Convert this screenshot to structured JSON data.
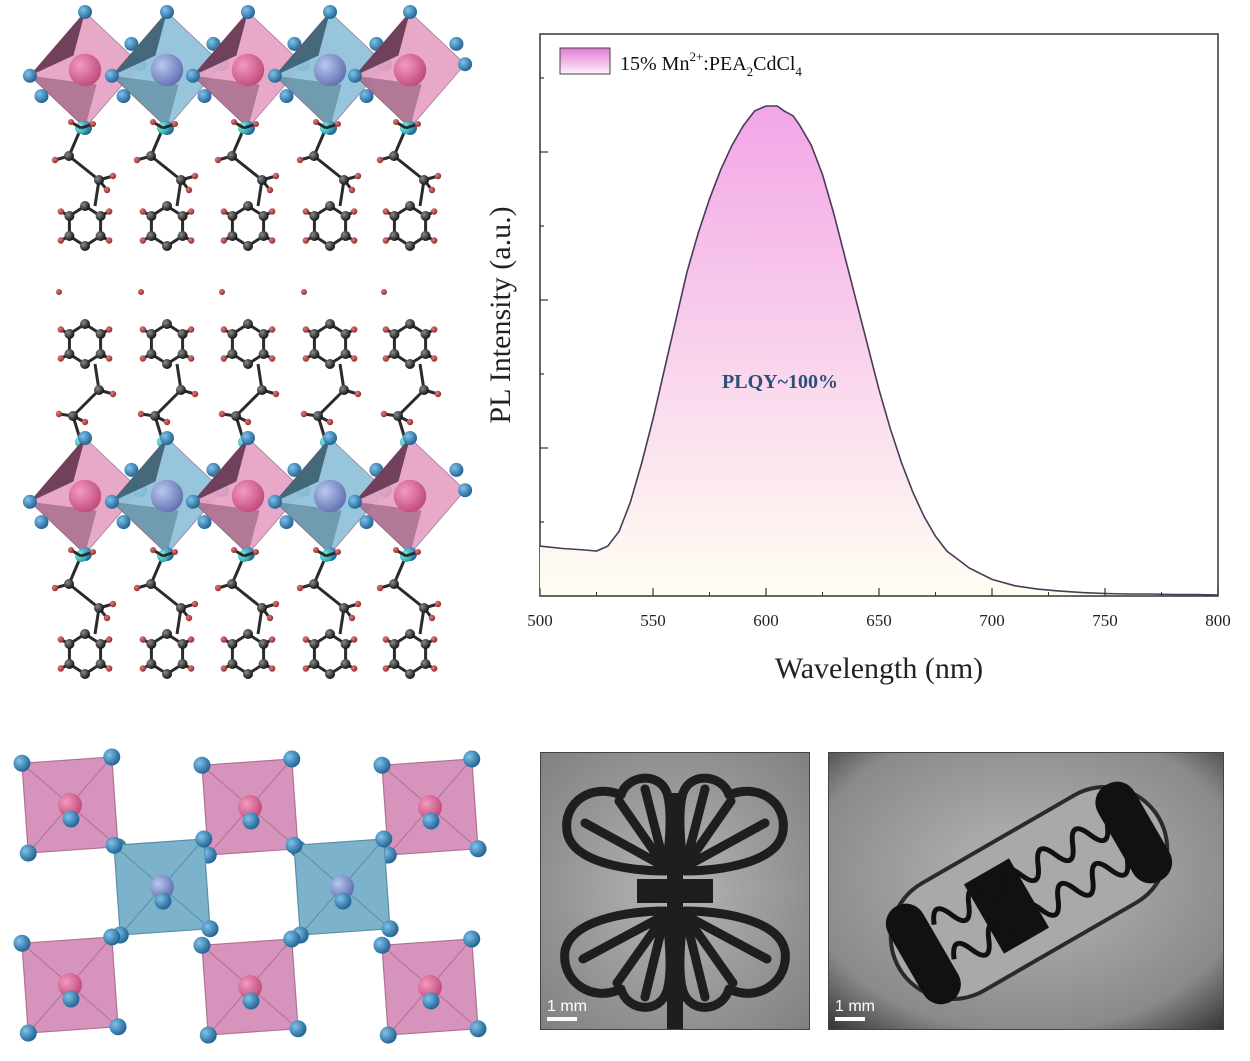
{
  "chart_data": {
    "type": "line",
    "legend": {
      "placement": "top-left",
      "text_main": "15% Mn",
      "text_sup": "2+",
      "text_rest": ":PEA",
      "text_sub1": "2",
      "text_rest2": "CdCl",
      "text_sub2": "4"
    },
    "annotation": "PLQY~100%",
    "xlabel": "Wavelength (nm)",
    "ylabel": "PL Intensity (a.u.)",
    "xlim": [
      500,
      800
    ],
    "ylim": [
      0,
      1.0
    ],
    "x_ticks": [
      "500",
      "550",
      "600",
      "650",
      "700",
      "750",
      "800"
    ],
    "y_tick_labels": [],
    "series": [
      {
        "color": "#4a3a5a",
        "fill_top": "#f2a6e6",
        "fill_bottom": "#fffef2",
        "x": [
          500,
          510,
          520,
          525,
          530,
          535,
          540,
          545,
          550,
          555,
          560,
          565,
          570,
          575,
          580,
          585,
          590,
          595,
          600,
          603,
          605,
          608,
          612,
          615,
          620,
          625,
          630,
          635,
          640,
          645,
          650,
          655,
          660,
          665,
          670,
          675,
          680,
          690,
          700,
          710,
          720,
          730,
          740,
          750,
          760,
          770,
          780,
          790,
          800
        ],
        "y": [
          0.1,
          0.095,
          0.092,
          0.09,
          0.1,
          0.13,
          0.19,
          0.27,
          0.36,
          0.46,
          0.56,
          0.66,
          0.74,
          0.81,
          0.87,
          0.92,
          0.96,
          0.99,
          1.0,
          1.0,
          1.0,
          0.99,
          0.98,
          0.96,
          0.92,
          0.86,
          0.78,
          0.69,
          0.6,
          0.51,
          0.42,
          0.34,
          0.27,
          0.21,
          0.16,
          0.12,
          0.09,
          0.055,
          0.032,
          0.019,
          0.012,
          0.008,
          0.005,
          0.003,
          0.002,
          0.002,
          0.001,
          0.001,
          0.0
        ]
      }
    ]
  },
  "photos": {
    "left_scale_label": "1 mm",
    "right_scale_label": "1 mm"
  },
  "colors": {
    "pink_octahedron": "#d98ab4",
    "blue_octahedron": "#7ab0cc",
    "chlorine_atom": "#1e5f8e",
    "carbon_atom": "#2a2a2a",
    "hydrogen_atom": "#8b2a2a",
    "nitrogen_atom": "#1aa6a6"
  }
}
